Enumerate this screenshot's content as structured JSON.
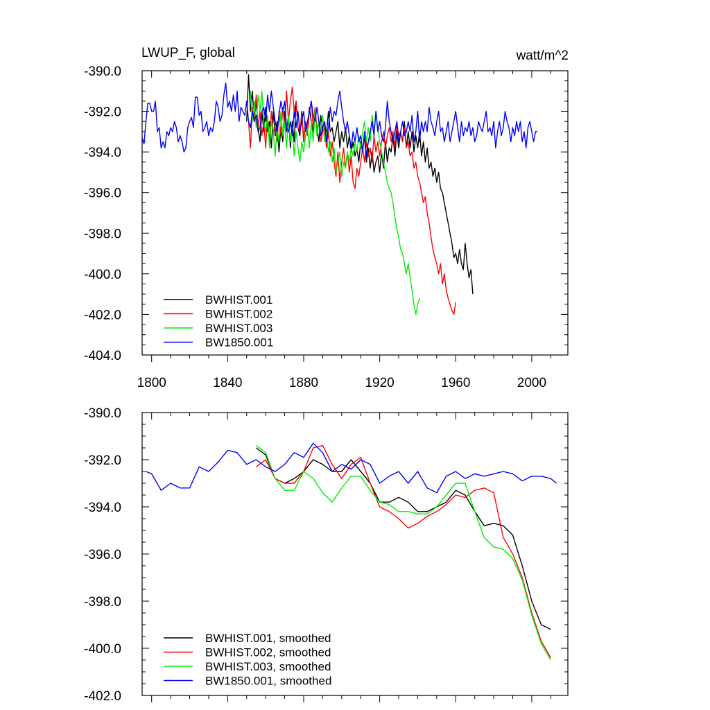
{
  "chart_data": [
    {
      "type": "line",
      "title": "LWUP_F, global",
      "units": "watt/m^2",
      "xlim": [
        1795,
        2019
      ],
      "ylim": [
        -404.0,
        -390.0
      ],
      "x_ticks": [
        1800,
        1840,
        1880,
        1920,
        1960,
        2000
      ],
      "x_tick_labels": [
        "1800",
        "1840",
        "1880",
        "1920",
        "1960",
        "2000"
      ],
      "y_ticks": [
        -390,
        -392,
        -394,
        -396,
        -398,
        -400,
        -402,
        -404
      ],
      "y_tick_labels": [
        "-390.0",
        "-392.0",
        "-394.0",
        "-396.0",
        "-398.0",
        "-400.0",
        "-402.0",
        "-404.0"
      ],
      "legend_position": "bottom-left",
      "series": [
        {
          "name": "BWHIST.001",
          "color": "#000000",
          "x_start": 1850,
          "y": [
            -392.5,
            -390.2,
            -392.0,
            -391.0,
            -392.5,
            -391.5,
            -392.8,
            -393.5,
            -392.0,
            -393.0,
            -391.8,
            -393.0,
            -392.5,
            -393.8,
            -392.0,
            -393.2,
            -392.5,
            -394.0,
            -392.8,
            -393.5,
            -392.0,
            -393.0,
            -392.2,
            -393.8,
            -392.5,
            -393.5,
            -391.5,
            -392.8,
            -393.2,
            -392.0,
            -393.5,
            -392.5,
            -393.0,
            -391.8,
            -392.5,
            -393.0,
            -392.0,
            -392.8,
            -393.5,
            -392.2,
            -393.0,
            -392.5,
            -393.2,
            -392.0,
            -393.0,
            -392.8,
            -393.5,
            -393.0,
            -392.5,
            -393.8,
            -393.0,
            -393.5,
            -392.8,
            -393.8,
            -393.2,
            -394.0,
            -393.5,
            -394.2,
            -393.8,
            -394.5,
            -393.5,
            -394.0,
            -393.2,
            -394.5,
            -393.8,
            -394.8,
            -394.0,
            -395.0,
            -394.5,
            -394.2,
            -395.0,
            -394.0,
            -394.8,
            -393.5,
            -394.5,
            -393.8,
            -394.0,
            -393.2,
            -394.2,
            -393.0,
            -393.8,
            -393.0,
            -393.5,
            -392.5,
            -393.8,
            -393.0,
            -393.8,
            -393.0,
            -394.0,
            -393.2,
            -393.8,
            -393.0,
            -394.2,
            -393.5,
            -394.5,
            -393.8,
            -394.8,
            -394.5,
            -395.2,
            -394.8,
            -395.5,
            -395.0,
            -395.8,
            -396.0,
            -396.5,
            -397.0,
            -397.5,
            -398.0,
            -398.5,
            -399.2,
            -399.0,
            -399.5,
            -398.8,
            -399.5,
            -399.8,
            -398.5,
            -399.5,
            -400.2,
            -399.8,
            -401.0
          ]
        },
        {
          "name": "BWHIST.002",
          "color": "#ff0000",
          "x_start": 1851,
          "y": [
            -392.5,
            -393.8,
            -391.8,
            -392.5,
            -391.2,
            -392.8,
            -392.0,
            -393.2,
            -392.5,
            -393.8,
            -392.2,
            -393.5,
            -392.0,
            -393.0,
            -392.8,
            -393.5,
            -392.0,
            -393.2,
            -391.8,
            -392.8,
            -391.0,
            -392.5,
            -391.5,
            -390.8,
            -392.0,
            -391.5,
            -392.8,
            -393.0,
            -392.2,
            -393.5,
            -392.5,
            -393.2,
            -392.0,
            -391.5,
            -392.8,
            -391.8,
            -393.0,
            -392.5,
            -393.5,
            -393.0,
            -392.8,
            -393.8,
            -393.0,
            -394.2,
            -393.5,
            -394.5,
            -395.2,
            -394.0,
            -395.5,
            -394.5,
            -393.8,
            -394.8,
            -394.0,
            -395.0,
            -394.2,
            -395.5,
            -395.8,
            -394.8,
            -395.2,
            -394.5,
            -393.8,
            -394.5,
            -393.5,
            -394.2,
            -393.8,
            -394.5,
            -393.2,
            -394.0,
            -393.5,
            -394.2,
            -393.5,
            -393.0,
            -393.8,
            -393.2,
            -392.8,
            -393.5,
            -393.0,
            -393.8,
            -392.5,
            -393.2,
            -393.0,
            -393.5,
            -392.8,
            -393.8,
            -393.5,
            -394.2,
            -394.0,
            -394.8,
            -394.5,
            -395.2,
            -395.5,
            -396.0,
            -396.5,
            -396.2,
            -397.0,
            -397.5,
            -398.2,
            -398.8,
            -399.2,
            -399.5,
            -400.0,
            -399.5,
            -400.5,
            -400.0,
            -400.8,
            -401.2,
            -401.5,
            -401.8,
            -402.0,
            -401.4
          ]
        },
        {
          "name": "BWHIST.003",
          "color": "#00ee00",
          "x_start": 1852,
          "y": [
            -391.0,
            -392.5,
            -391.5,
            -392.8,
            -391.2,
            -392.0,
            -391.0,
            -392.5,
            -393.0,
            -392.2,
            -393.8,
            -392.5,
            -393.0,
            -394.2,
            -392.8,
            -393.5,
            -392.0,
            -393.2,
            -392.5,
            -393.8,
            -392.2,
            -393.5,
            -392.8,
            -394.2,
            -393.0,
            -393.8,
            -394.5,
            -393.5,
            -394.0,
            -393.2,
            -392.8,
            -393.8,
            -392.5,
            -393.5,
            -392.0,
            -393.2,
            -392.5,
            -393.0,
            -392.2,
            -393.5,
            -393.0,
            -394.0,
            -393.5,
            -394.5,
            -393.8,
            -395.0,
            -394.5,
            -394.0,
            -395.2,
            -394.5,
            -394.8,
            -394.0,
            -394.5,
            -393.8,
            -394.2,
            -393.5,
            -394.0,
            -393.2,
            -393.8,
            -393.0,
            -392.5,
            -393.5,
            -392.8,
            -393.5,
            -392.2,
            -393.0,
            -392.0,
            -392.8,
            -393.5,
            -394.0,
            -394.5,
            -395.0,
            -395.5,
            -395.8,
            -396.0,
            -396.5,
            -397.2,
            -397.8,
            -398.2,
            -398.8,
            -399.0,
            -399.5,
            -400.0,
            -399.5,
            -400.2,
            -400.8,
            -401.5,
            -402.0,
            -401.5,
            -401.2
          ]
        },
        {
          "name": "BW1850.001",
          "color": "#0000ff",
          "x_start": 1795,
          "y": [
            -393.3,
            -393.6,
            -392.5,
            -391.6,
            -391.6,
            -392.0,
            -392.0,
            -391.5,
            -393.0,
            -392.8,
            -393.8,
            -393.5,
            -393.8,
            -393.0,
            -393.2,
            -392.8,
            -393.0,
            -392.5,
            -392.8,
            -393.5,
            -393.2,
            -393.5,
            -394.0,
            -393.8,
            -392.8,
            -392.5,
            -392.3,
            -392.8,
            -391.3,
            -391.3,
            -392.2,
            -392.0,
            -393.0,
            -392.8,
            -392.5,
            -393.2,
            -392.8,
            -393.0,
            -392.5,
            -391.5,
            -391.8,
            -392.5,
            -392.2,
            -391.2,
            -390.6,
            -391.8,
            -391.5,
            -392.0,
            -391.2,
            -392.0,
            -391.0,
            -392.5,
            -391.8,
            -392.0,
            -392.2,
            -391.5,
            -392.5,
            -392.8,
            -392.0,
            -392.5,
            -392.2,
            -393.0,
            -392.8,
            -392.0,
            -391.8,
            -392.5,
            -391.2,
            -392.0,
            -391.0,
            -391.8,
            -392.5,
            -393.0,
            -392.2,
            -391.5,
            -392.0,
            -391.5,
            -392.8,
            -393.0,
            -392.5,
            -393.2,
            -392.0,
            -392.8,
            -392.0,
            -393.0,
            -392.5,
            -392.0,
            -393.0,
            -392.5,
            -392.0,
            -391.5,
            -392.2,
            -392.5,
            -391.8,
            -392.5,
            -393.2,
            -392.8,
            -392.5,
            -393.5,
            -392.8,
            -391.8,
            -392.5,
            -392.0,
            -392.2,
            -391.5,
            -391.0,
            -391.8,
            -392.5,
            -393.0,
            -392.5,
            -393.2,
            -393.8,
            -393.0,
            -393.5,
            -392.8,
            -393.5,
            -393.2,
            -394.0,
            -393.0,
            -394.2,
            -393.5,
            -393.0,
            -392.5,
            -393.2,
            -392.0,
            -393.0,
            -392.5,
            -393.2,
            -393.5,
            -392.8,
            -391.5,
            -392.5,
            -393.0,
            -393.5,
            -393.0,
            -392.5,
            -393.5,
            -393.0,
            -392.5,
            -393.2,
            -393.0,
            -392.5,
            -393.0,
            -392.2,
            -393.5,
            -393.0,
            -392.0,
            -393.5,
            -392.5,
            -393.0,
            -392.5,
            -393.0,
            -391.8,
            -392.5,
            -392.8,
            -393.2,
            -392.5,
            -392.0,
            -393.0,
            -392.8,
            -393.5,
            -393.0,
            -392.5,
            -393.5,
            -393.0,
            -392.5,
            -392.0,
            -392.8,
            -393.5,
            -392.5,
            -393.2,
            -392.8,
            -393.0,
            -392.5,
            -393.2,
            -392.8,
            -393.5,
            -393.2,
            -392.5,
            -392.8,
            -393.0,
            -392.5,
            -392.0,
            -393.0,
            -392.8,
            -393.2,
            -392.5,
            -393.8,
            -393.0,
            -392.5,
            -393.2,
            -392.8,
            -392.0,
            -392.5,
            -392.8,
            -393.5,
            -392.8,
            -393.2,
            -392.5,
            -393.0,
            -392.5,
            -393.5,
            -393.0,
            -393.8,
            -392.8,
            -392.5,
            -393.0,
            -393.5,
            -393.0,
            -393.0
          ]
        }
      ],
      "legend": [
        "BWHIST.001",
        "BWHIST.002",
        "BWHIST.003",
        "BW1850.001"
      ]
    },
    {
      "type": "line",
      "xlim": [
        1795,
        2019
      ],
      "ylim": [
        -402.0,
        -390.0
      ],
      "x_ticks": [
        1800,
        1840,
        1880,
        1920,
        1960,
        2000
      ],
      "y_ticks": [
        -390,
        -392,
        -394,
        -396,
        -398,
        -400,
        -402
      ],
      "y_tick_labels": [
        "-390.0",
        "-392.0",
        "-394.0",
        "-396.0",
        "-398.0",
        "-400.0",
        "-402.0"
      ],
      "legend_position": "bottom-left",
      "series": [
        {
          "name": "BWHIST.001, smoothed",
          "color": "#000000",
          "x": [
            1855,
            1860,
            1865,
            1870,
            1875,
            1880,
            1885,
            1890,
            1895,
            1900,
            1905,
            1910,
            1915,
            1920,
            1925,
            1930,
            1935,
            1940,
            1945,
            1950,
            1955,
            1960,
            1965,
            1970,
            1975,
            1980,
            1985,
            1990,
            1995,
            2000,
            2005,
            2010
          ],
          "y": [
            -391.5,
            -391.8,
            -392.8,
            -393.0,
            -392.8,
            -392.5,
            -392.0,
            -392.2,
            -392.5,
            -392.5,
            -392.0,
            -392.5,
            -393.0,
            -393.8,
            -393.8,
            -393.6,
            -393.8,
            -394.2,
            -394.2,
            -394.0,
            -393.8,
            -393.3,
            -393.5,
            -394.2,
            -394.8,
            -394.7,
            -394.8,
            -395.2,
            -396.5,
            -398.0,
            -399.0,
            -399.2
          ]
        },
        {
          "name": "BWHIST.002, smoothed",
          "color": "#ff0000",
          "x": [
            1855,
            1860,
            1865,
            1870,
            1875,
            1880,
            1885,
            1890,
            1895,
            1900,
            1905,
            1910,
            1915,
            1920,
            1925,
            1930,
            1935,
            1940,
            1945,
            1950,
            1955,
            1960,
            1965,
            1970,
            1975,
            1980,
            1985,
            1990,
            1995,
            2000,
            2005,
            2010
          ],
          "y": [
            -392.3,
            -392.0,
            -392.8,
            -393.0,
            -393.0,
            -392.5,
            -391.5,
            -391.4,
            -392.2,
            -392.8,
            -392.2,
            -391.9,
            -393.0,
            -394.0,
            -394.2,
            -394.5,
            -394.9,
            -394.7,
            -394.4,
            -394.2,
            -393.9,
            -393.5,
            -393.6,
            -393.3,
            -393.2,
            -393.4,
            -395.3,
            -396.0,
            -397.0,
            -398.5,
            -399.7,
            -400.4
          ]
        },
        {
          "name": "BWHIST.003, smoothed",
          "color": "#00ee00",
          "x": [
            1855,
            1860,
            1865,
            1870,
            1875,
            1880,
            1885,
            1890,
            1895,
            1900,
            1905,
            1910,
            1915,
            1920,
            1925,
            1930,
            1935,
            1940,
            1945,
            1950,
            1955,
            1960,
            1965,
            1970,
            1975,
            1980,
            1985,
            1990,
            1995,
            2000,
            2005,
            2010
          ],
          "y": [
            -391.4,
            -391.7,
            -392.8,
            -393.3,
            -393.3,
            -392.5,
            -392.8,
            -393.4,
            -393.8,
            -393.2,
            -392.7,
            -392.7,
            -393.3,
            -393.8,
            -393.9,
            -394.2,
            -394.2,
            -394.3,
            -394.3,
            -394.0,
            -393.5,
            -393.0,
            -393.0,
            -394.2,
            -395.3,
            -395.7,
            -395.8,
            -396.2,
            -397.1,
            -398.6,
            -399.8,
            -400.5
          ]
        },
        {
          "name": "BW1850.001, smoothed",
          "color": "#0000ff",
          "x": [
            1797,
            1800,
            1805,
            1810,
            1815,
            1820,
            1825,
            1830,
            1835,
            1840,
            1845,
            1850,
            1855,
            1860,
            1865,
            1870,
            1875,
            1880,
            1885,
            1890,
            1895,
            1900,
            1905,
            1910,
            1915,
            1920,
            1925,
            1930,
            1935,
            1940,
            1945,
            1950,
            1955,
            1960,
            1965,
            1970,
            1975,
            1980,
            1985,
            1990,
            1995,
            2000,
            2005,
            2010,
            2013
          ],
          "y": [
            -392.5,
            -392.6,
            -393.3,
            -393.0,
            -393.2,
            -393.2,
            -392.3,
            -392.5,
            -392.1,
            -391.6,
            -391.7,
            -392.2,
            -392.0,
            -392.3,
            -392.5,
            -392.2,
            -391.7,
            -391.9,
            -391.3,
            -391.7,
            -392.5,
            -392.2,
            -392.4,
            -392.0,
            -392.2,
            -393.0,
            -392.7,
            -392.5,
            -393.0,
            -392.5,
            -393.2,
            -393.4,
            -392.7,
            -392.5,
            -392.8,
            -392.6,
            -392.7,
            -392.6,
            -392.5,
            -392.6,
            -392.9,
            -392.7,
            -392.7,
            -392.8,
            -393.0
          ]
        }
      ],
      "legend": [
        "BWHIST.001, smoothed",
        "BWHIST.002, smoothed",
        "BWHIST.003, smoothed",
        "BW1850.001, smoothed"
      ]
    }
  ]
}
